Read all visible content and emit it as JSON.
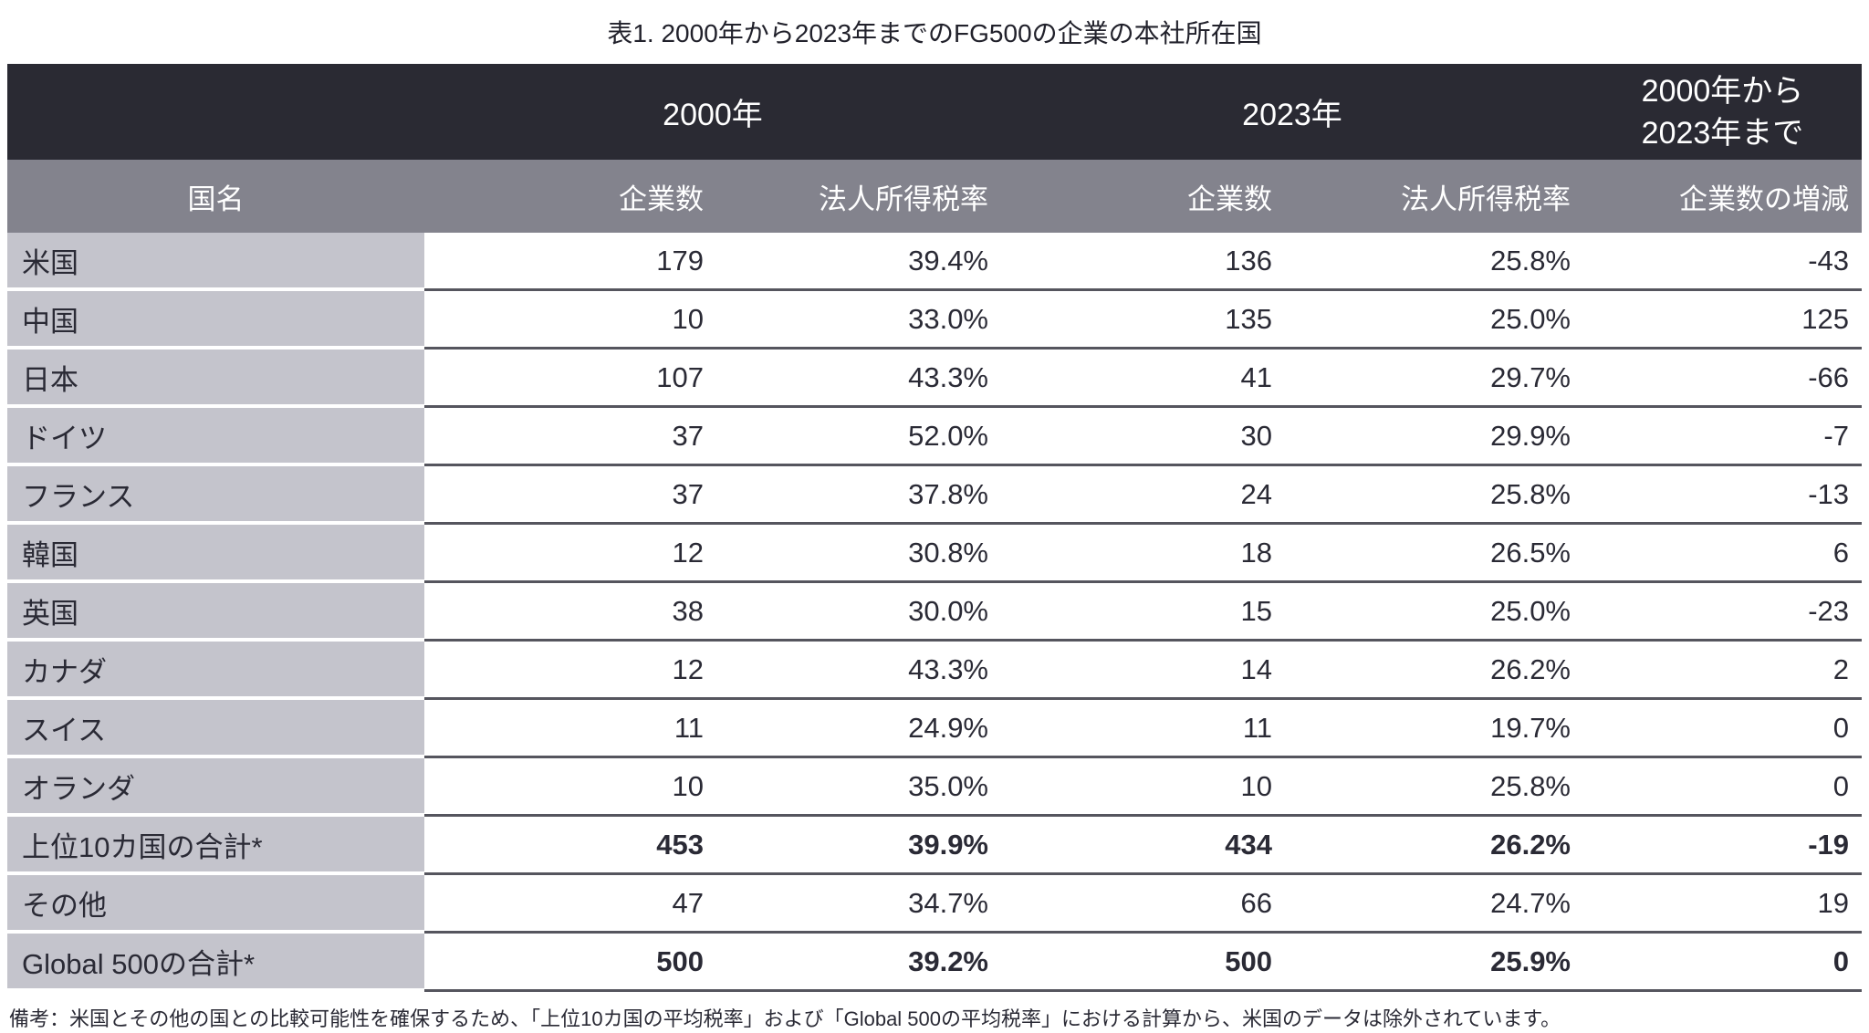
{
  "title": "表1. 2000年から2023年までのFG500の企業の本社所在国",
  "colors": {
    "header_dark": "#2a2a33",
    "header_gray": "#83838d",
    "country_cell_gray": "#c4c4cc",
    "row_separator": "#55555e",
    "text_dark": "#2a2a35"
  },
  "table": {
    "year_headers": {
      "y2000": "2000年",
      "y2023": "2023年",
      "range_line1": "2000年から",
      "range_line2": "2023年まで"
    },
    "col_headers": {
      "country": "国名",
      "companies_2000": "企業数",
      "tax_2000": "法人所得税率",
      "companies_2023": "企業数",
      "tax_2023": "法人所得税率",
      "change": "企業数の増減"
    },
    "rows": [
      {
        "country": "米国",
        "c2000": "179",
        "t2000": "39.4%",
        "c2023": "136",
        "t2023": "25.8%",
        "change": "-43"
      },
      {
        "country": "中国",
        "c2000": "10",
        "t2000": "33.0%",
        "c2023": "135",
        "t2023": "25.0%",
        "change": "125"
      },
      {
        "country": "日本",
        "c2000": "107",
        "t2000": "43.3%",
        "c2023": "41",
        "t2023": "29.7%",
        "change": "-66"
      },
      {
        "country": "ドイツ",
        "c2000": "37",
        "t2000": "52.0%",
        "c2023": "30",
        "t2023": "29.9%",
        "change": "-7"
      },
      {
        "country": "フランス",
        "c2000": "37",
        "t2000": "37.8%",
        "c2023": "24",
        "t2023": "25.8%",
        "change": "-13"
      },
      {
        "country": "韓国",
        "c2000": "12",
        "t2000": "30.8%",
        "c2023": "18",
        "t2023": "26.5%",
        "change": "6"
      },
      {
        "country": "英国",
        "c2000": "38",
        "t2000": "30.0%",
        "c2023": "15",
        "t2023": "25.0%",
        "change": "-23"
      },
      {
        "country": "カナダ",
        "c2000": "12",
        "t2000": "43.3%",
        "c2023": "14",
        "t2023": "26.2%",
        "change": "2"
      },
      {
        "country": "スイス",
        "c2000": "11",
        "t2000": "24.9%",
        "c2023": "11",
        "t2023": "19.7%",
        "change": "0"
      },
      {
        "country": "オランダ",
        "c2000": "10",
        "t2000": "35.0%",
        "c2023": "10",
        "t2023": "25.8%",
        "change": "0"
      },
      {
        "country": "上位10カ国の合計*",
        "c2000": "453",
        "t2000": "39.9%",
        "c2023": "434",
        "t2023": "26.2%",
        "change": "-19",
        "bold": true
      },
      {
        "country": "その他",
        "c2000": "47",
        "t2000": "34.7%",
        "c2023": "66",
        "t2023": "24.7%",
        "change": "19"
      },
      {
        "country": "Global 500の合計*",
        "c2000": "500",
        "t2000": "39.2%",
        "c2023": "500",
        "t2023": "25.9%",
        "change": "0",
        "bold": true
      }
    ]
  },
  "footnote": "備考：米国とその他の国との比較可能性を確保するため、「上位10カ国の平均税率」および「Global 500の平均税率」における計算から、米国のデータは除外されています。",
  "chart_data": {
    "type": "table",
    "title": "表1. 2000年から2023年までのFG500の企業の本社所在国",
    "column_groups": [
      "2000年",
      "2023年",
      "2000年から2023年まで"
    ],
    "columns": [
      "国名",
      "企業数 (2000年)",
      "法人所得税率 (2000年)",
      "企業数 (2023年)",
      "法人所得税率 (2023年)",
      "企業数の増減"
    ],
    "rows": [
      [
        "米国",
        179,
        "39.4%",
        136,
        "25.8%",
        -43
      ],
      [
        "中国",
        10,
        "33.0%",
        135,
        "25.0%",
        125
      ],
      [
        "日本",
        107,
        "43.3%",
        41,
        "29.7%",
        -66
      ],
      [
        "ドイツ",
        37,
        "52.0%",
        30,
        "29.9%",
        -7
      ],
      [
        "フランス",
        37,
        "37.8%",
        24,
        "25.8%",
        -13
      ],
      [
        "韓国",
        12,
        "30.8%",
        18,
        "26.5%",
        6
      ],
      [
        "英国",
        38,
        "30.0%",
        15,
        "25.0%",
        -23
      ],
      [
        "カナダ",
        12,
        "43.3%",
        14,
        "26.2%",
        2
      ],
      [
        "スイス",
        11,
        "24.9%",
        11,
        "19.7%",
        0
      ],
      [
        "オランダ",
        10,
        "35.0%",
        10,
        "25.8%",
        0
      ],
      [
        "上位10カ国の合計*",
        453,
        "39.9%",
        434,
        "26.2%",
        -19
      ],
      [
        "その他",
        47,
        "34.7%",
        66,
        "24.7%",
        19
      ],
      [
        "Global 500の合計*",
        500,
        "39.2%",
        500,
        "25.9%",
        0
      ]
    ],
    "footnote": "備考：米国とその他の国との比較可能性を確保するため、「上位10カ国の平均税率」および「Global 500の平均税率」における計算から、米国のデータは除外されています。"
  }
}
